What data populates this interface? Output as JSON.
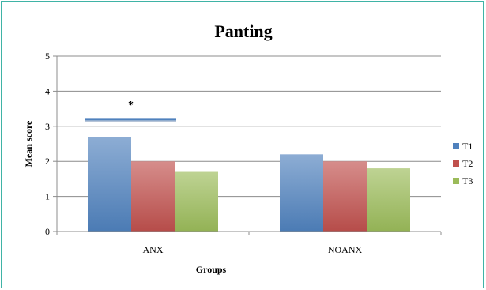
{
  "chart_data": {
    "type": "bar",
    "title": "Panting",
    "xlabel": "Groups",
    "ylabel": "Mean score",
    "categories": [
      "ANX",
      "NOANX"
    ],
    "series": [
      {
        "name": "T1",
        "values": [
          2.7,
          2.2
        ],
        "color": "#4f81bd"
      },
      {
        "name": "T2",
        "values": [
          2.0,
          2.0
        ],
        "color": "#c0504d"
      },
      {
        "name": "T3",
        "values": [
          1.7,
          1.8
        ],
        "color": "#9bbb59"
      }
    ],
    "ylim": [
      0,
      5
    ],
    "yticks": [
      0,
      1,
      2,
      3,
      4,
      5
    ],
    "grid": true,
    "legend": "right",
    "annotations": [
      {
        "text": "*",
        "category": "ANX",
        "y": 3.2
      }
    ]
  }
}
